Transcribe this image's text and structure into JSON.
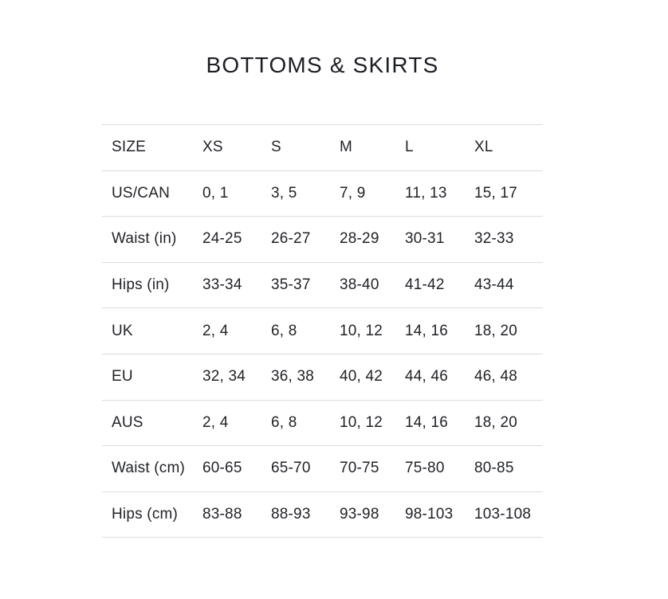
{
  "page": {
    "title": "BOTTOMS & SKIRTS"
  },
  "colors": {
    "background": "#ffffff",
    "text": "#1f2126",
    "divider": "#dcdcdc"
  },
  "chart_data": {
    "type": "table",
    "title": "BOTTOMS & SKIRTS",
    "columns": [
      "SIZE",
      "XS",
      "S",
      "M",
      "L",
      "XL"
    ],
    "rows": [
      {
        "label": "US/CAN",
        "values": [
          "0, 1",
          "3, 5",
          "7, 9",
          "11, 13",
          "15, 17"
        ]
      },
      {
        "label": "Waist (in)",
        "values": [
          "24-25",
          "26-27",
          "28-29",
          "30-31",
          "32-33"
        ]
      },
      {
        "label": "Hips (in)",
        "values": [
          "33-34",
          "35-37",
          "38-40",
          "41-42",
          "43-44"
        ]
      },
      {
        "label": "UK",
        "values": [
          "2, 4",
          "6, 8",
          "10, 12",
          "14, 16",
          "18, 20"
        ]
      },
      {
        "label": "EU",
        "values": [
          "32, 34",
          "36, 38",
          "40, 42",
          "44, 46",
          "46, 48"
        ]
      },
      {
        "label": "AUS",
        "values": [
          "2, 4",
          "6, 8",
          "10, 12",
          "14, 16",
          "18, 20"
        ]
      },
      {
        "label": "Waist (cm)",
        "values": [
          "60-65",
          "65-70",
          "70-75",
          "75-80",
          "80-85"
        ]
      },
      {
        "label": "Hips (cm)",
        "values": [
          "83-88",
          "88-93",
          "93-98",
          "98-103",
          "103-108"
        ]
      }
    ],
    "layout": {
      "grid": "horizontal-dividers-only",
      "header_position": "top-row",
      "alignment": "left"
    }
  }
}
